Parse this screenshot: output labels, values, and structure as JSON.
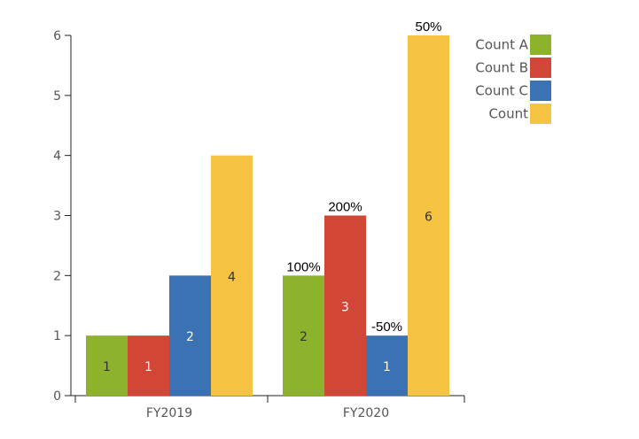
{
  "chart_data": {
    "type": "bar",
    "categories": [
      "FY2019",
      "FY2020"
    ],
    "series": [
      {
        "name": "Count A",
        "color": "#8db22c",
        "values": [
          1,
          2
        ],
        "label_color": "#333333",
        "annotations": [
          "",
          "100%"
        ]
      },
      {
        "name": "Count B",
        "color": "#d24637",
        "values": [
          1,
          3
        ],
        "label_color": "#ffffff",
        "annotations": [
          "",
          "200%"
        ]
      },
      {
        "name": "Count C",
        "color": "#3a72b4",
        "values": [
          2,
          1
        ],
        "label_color": "#ffffff",
        "annotations": [
          "",
          "-50%"
        ]
      },
      {
        "name": "Count",
        "color": "#f5c242",
        "values": [
          4,
          6
        ],
        "label_color": "#333333",
        "annotations": [
          "",
          "50%"
        ]
      }
    ],
    "ylim": [
      0,
      6
    ],
    "yticks": [
      0,
      1,
      2,
      3,
      4,
      5,
      6
    ],
    "title": "",
    "xlabel": "",
    "ylabel": "",
    "legend_position": "top-right"
  }
}
